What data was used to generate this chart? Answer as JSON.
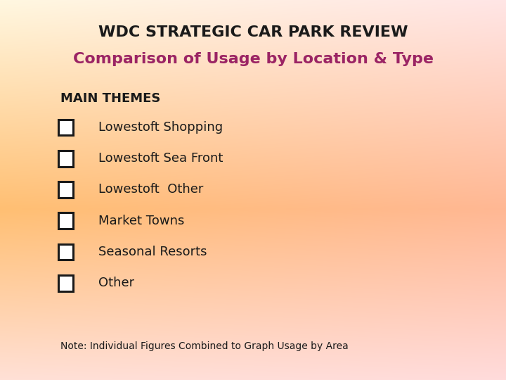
{
  "title_line1": "WDC STRATEGIC CAR PARK REVIEW",
  "title_line2": "Comparison of Usage by Location & Type",
  "title_line1_color": "#1a1a1a",
  "title_line2_color": "#9b2464",
  "section_header": "MAIN THEMES",
  "items": [
    "Lowestoft Shopping",
    "Lowestoft Sea Front",
    "Lowestoft  Other",
    "Market Towns",
    "Seasonal Resorts",
    "Other"
  ],
  "note": "Note: Individual Figures Combined to Graph Usage by Area",
  "title1_fontsize": 16,
  "title2_fontsize": 16,
  "header_fontsize": 13,
  "item_fontsize": 13,
  "note_fontsize": 10,
  "checkbox_color": "#1a1a1a",
  "text_color": "#1a1a1a",
  "note_color": "#1a1a1a",
  "bg_corners": {
    "tl": [
      1.0,
      0.97,
      0.88
    ],
    "tr": [
      1.0,
      0.88,
      0.88
    ],
    "ml": [
      1.0,
      0.8,
      0.55
    ],
    "mr": [
      1.0,
      0.75,
      0.65
    ],
    "bl": [
      1.0,
      0.88,
      0.82
    ],
    "br": [
      1.0,
      0.88,
      0.82
    ]
  }
}
